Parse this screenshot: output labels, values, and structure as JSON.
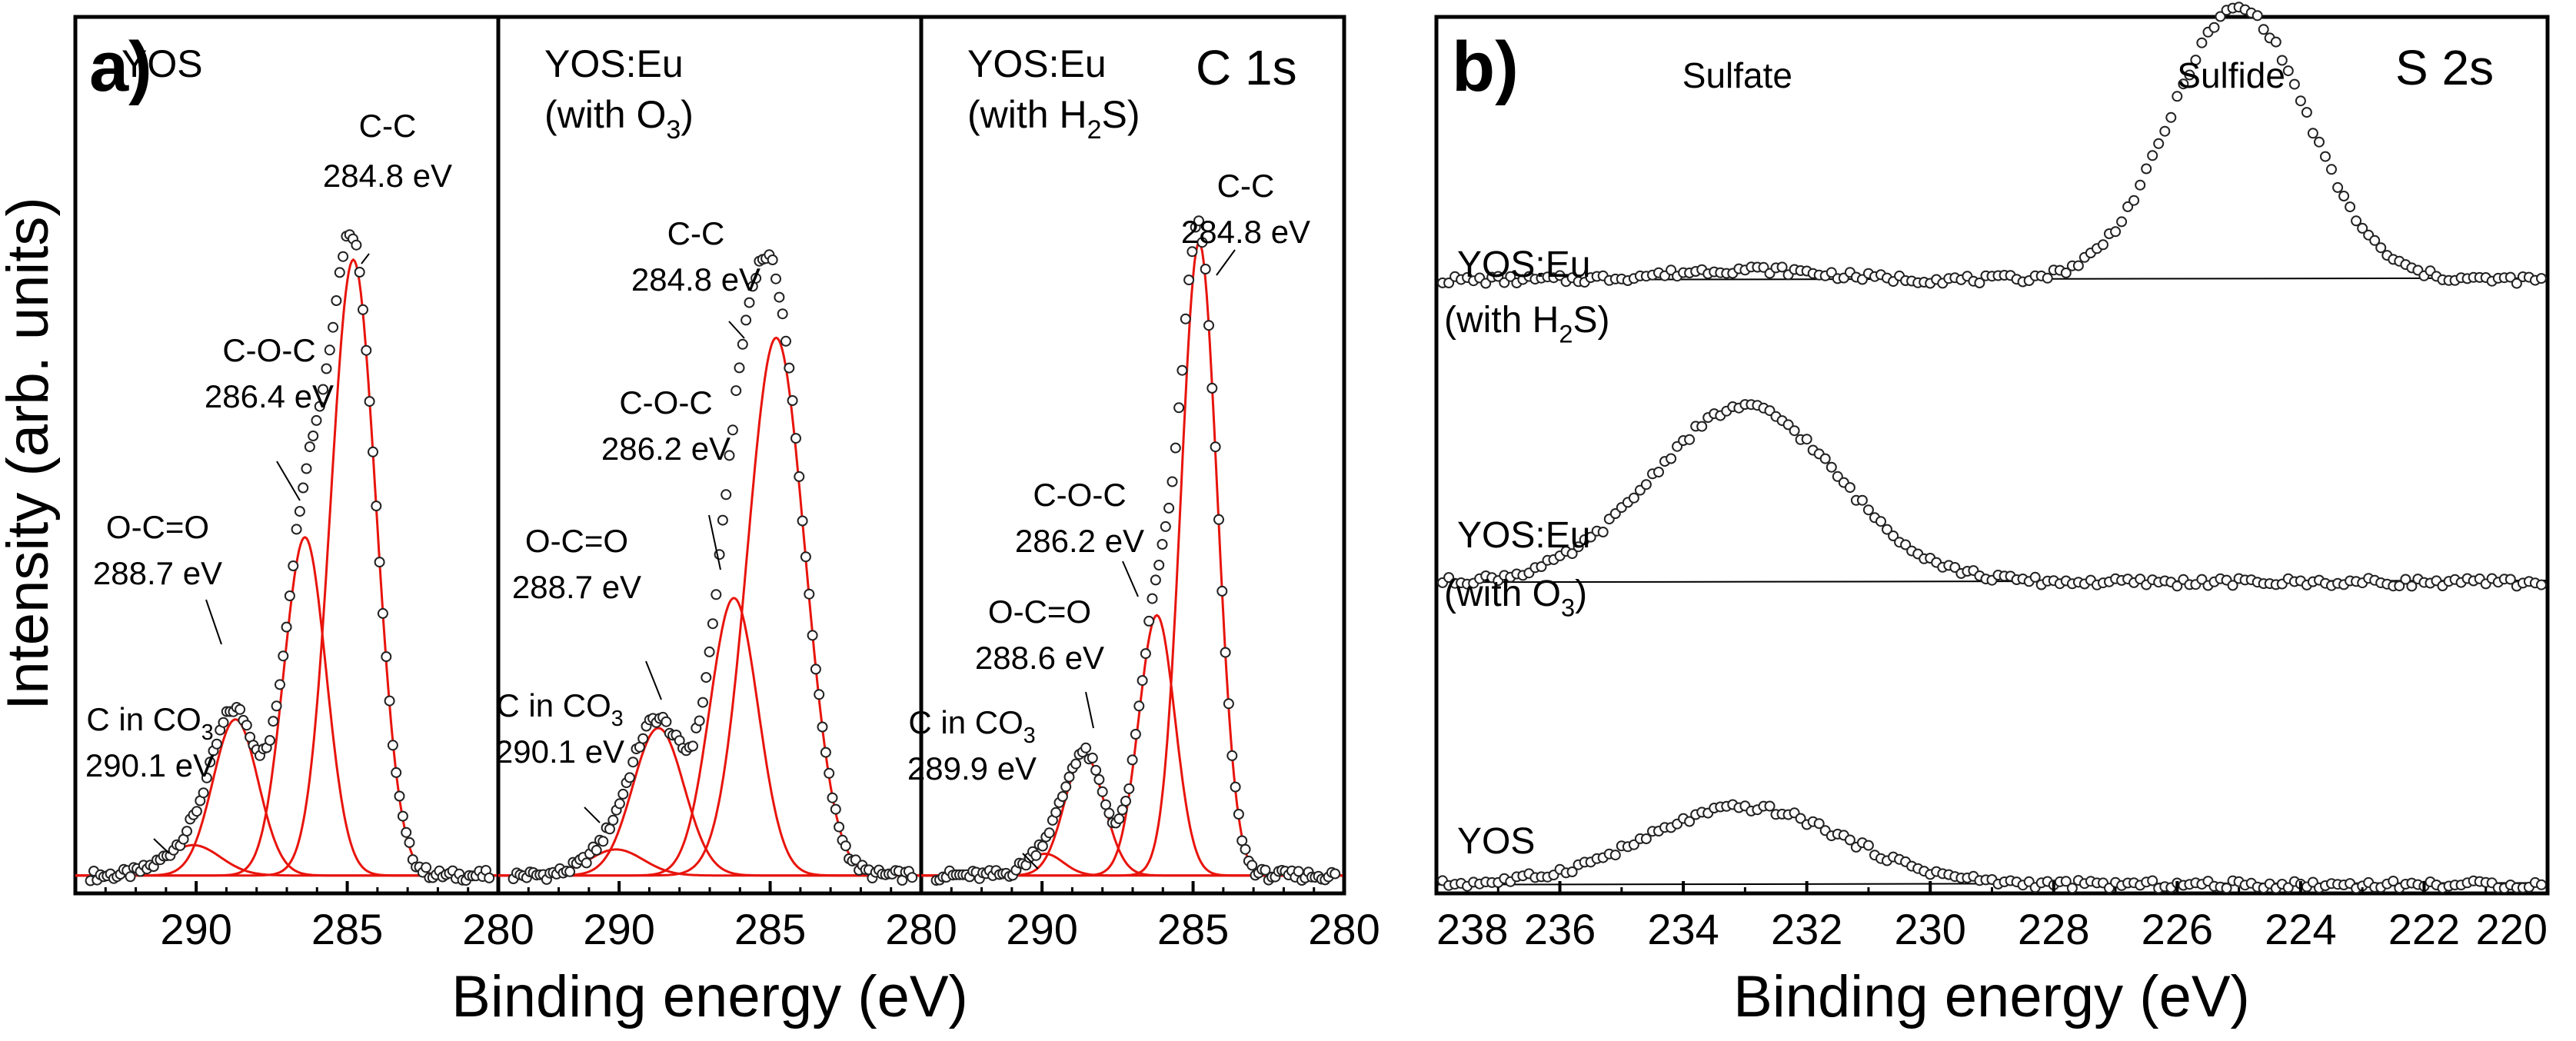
{
  "figure": {
    "ylabel": "Intensity (arb. units)",
    "xlabel_a": "Binding energy (eV)",
    "xlabel_b": "Binding energy (eV)",
    "panel_a_letter": "a)",
    "panel_b_letter": "b)",
    "panel_a_core": "C 1s",
    "panel_b_core": "S 2s",
    "ticks_a": [
      "290",
      "285",
      "280"
    ],
    "ticks_b": [
      "238",
      "236",
      "234",
      "232",
      "230",
      "228",
      "226",
      "224",
      "222",
      "220"
    ]
  },
  "colors": {
    "fit": "#e8140c",
    "data": "#000000",
    "axis": "#000000"
  },
  "chart_data": [
    {
      "type": "scatter",
      "title": "YOS",
      "xlabel": "Binding energy (eV)",
      "ylabel": "Intensity (arb. units)",
      "xlim": [
        294,
        280
      ],
      "ylim": [
        0,
        1.0
      ],
      "fit_peaks": [
        {
          "name": "C-C",
          "center": 284.8,
          "label": "C-C",
          "energy_label": "284.8 eV",
          "height": 0.71,
          "width": 0.75
        },
        {
          "name": "C-O-C",
          "center": 286.4,
          "label": "C-O-C",
          "energy_label": "286.4 eV",
          "height": 0.39,
          "width": 0.7
        },
        {
          "name": "O-C=O",
          "center": 288.7,
          "label": "O-C=O",
          "energy_label": "288.7 eV",
          "height": 0.18,
          "width": 0.75
        },
        {
          "name": "C in CO3",
          "center": 290.1,
          "label": "C in CO",
          "label_sub": "3",
          "energy_label": "290.1 eV",
          "height": 0.035,
          "width": 0.9
        }
      ],
      "baseline": 0.01
    },
    {
      "type": "scatter",
      "title": "YOS:Eu",
      "subtitle": "(with O",
      "subtitle_sub": "3",
      "subtitle_end": ")",
      "xlabel": "Binding energy (eV)",
      "xlim": [
        294,
        280
      ],
      "ylim": [
        0,
        1.0
      ],
      "fit_peaks": [
        {
          "name": "C-C",
          "center": 284.8,
          "label": "C-C",
          "energy_label": "284.8 eV",
          "height": 0.62,
          "width": 0.95
        },
        {
          "name": "C-O-C",
          "center": 286.2,
          "label": "C-O-C",
          "energy_label": "286.2 eV",
          "height": 0.32,
          "width": 0.8
        },
        {
          "name": "O-C=O",
          "center": 288.7,
          "label": "O-C=O",
          "energy_label": "288.7 eV",
          "height": 0.17,
          "width": 0.85
        },
        {
          "name": "C in CO3",
          "center": 290.1,
          "label": "C in CO",
          "label_sub": "3",
          "energy_label": "290.1 eV",
          "height": 0.03,
          "width": 0.9
        }
      ],
      "baseline": 0.01
    },
    {
      "type": "scatter",
      "title": "YOS:Eu",
      "subtitle": "(with H",
      "subtitle_sub": "2",
      "subtitle_end": "S)",
      "core_label": "C 1s",
      "xlabel": "Binding energy (eV)",
      "xlim": [
        294,
        280
      ],
      "ylim": [
        0,
        1.0
      ],
      "fit_peaks": [
        {
          "name": "C-C",
          "center": 284.8,
          "label": "C-C",
          "energy_label": "284.8 eV",
          "height": 0.73,
          "width": 0.6
        },
        {
          "name": "C-O-C",
          "center": 286.2,
          "label": "C-O-C",
          "energy_label": "286.2 eV",
          "height": 0.3,
          "width": 0.6
        },
        {
          "name": "O-C=O",
          "center": 288.6,
          "label": "O-C=O",
          "energy_label": "288.6 eV",
          "height": 0.14,
          "width": 0.65
        },
        {
          "name": "C in CO3",
          "center": 289.9,
          "label": "C in CO",
          "label_sub": "3",
          "energy_label": "289.9 eV",
          "height": 0.025,
          "width": 0.6
        }
      ],
      "baseline": 0.01
    },
    {
      "type": "scatter",
      "title": "S 2s",
      "xlabel": "Binding energy (eV)",
      "xlim": [
        238,
        220
      ],
      "peak_labels": [
        {
          "text": "Sulfate",
          "energy": 233
        },
        {
          "text": "Sulfide",
          "energy": 225
        }
      ],
      "series": [
        {
          "name": "YOS:Eu (with H2S)",
          "label_line1": "YOS:Eu",
          "label_line2": "(with H",
          "label_sub": "2",
          "label_end": "S)",
          "baseline": 0.3,
          "peaks": [
            {
              "center": 233.0,
              "height": 0.012,
              "width": 1.2
            },
            {
              "center": 225.0,
              "height": 0.31,
              "width": 1.1
            }
          ]
        },
        {
          "name": "YOS:Eu (with O3)",
          "label_line1": "YOS:Eu",
          "label_line2": "(with O",
          "label_sub": "3",
          "label_end": ")",
          "baseline": 0.645,
          "peaks": [
            {
              "center": 233.0,
              "height": 0.2,
              "width": 1.5
            }
          ]
        },
        {
          "name": "YOS",
          "label_line1": "YOS",
          "baseline": 0.99,
          "peaks": [
            {
              "center": 233.0,
              "height": 0.088,
              "width": 1.6
            }
          ]
        }
      ]
    }
  ]
}
